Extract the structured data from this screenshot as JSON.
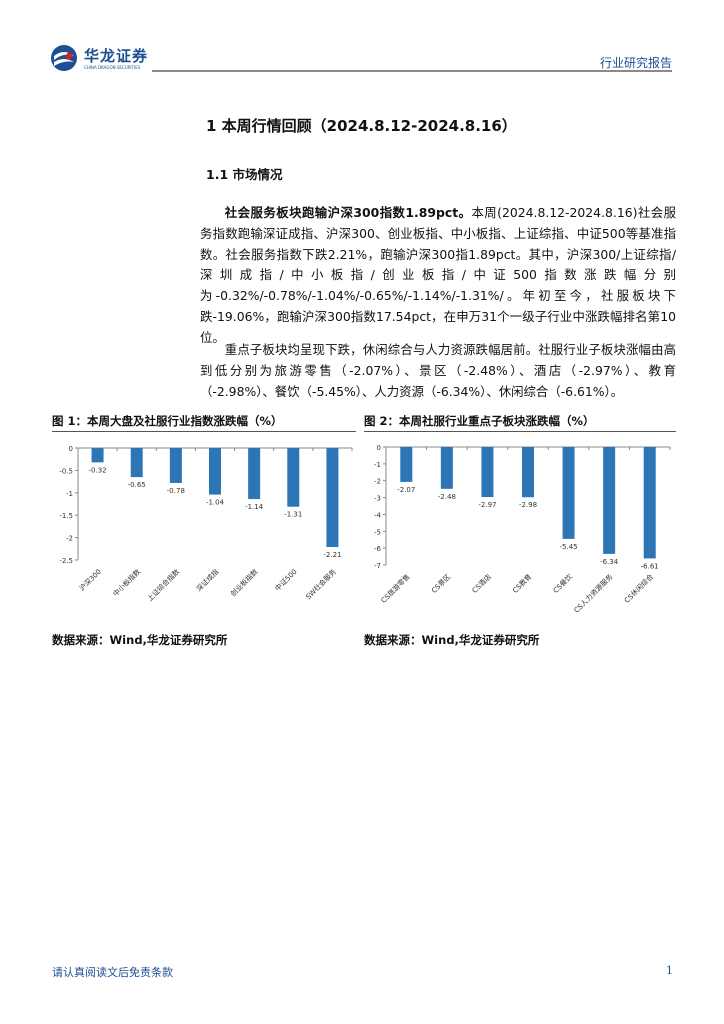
{
  "header": {
    "logo_cn": "华龙证券",
    "logo_en": "CHINA DRAGON SECURITIES",
    "report_type": "行业研究报告"
  },
  "section": {
    "title": "1 本周行情回顾（2024.8.12-2024.8.16）",
    "subtitle": "1.1 市场情况"
  },
  "paragraphs": {
    "p1_lead": "社会服务板块跑输沪深300指数1.89pct。",
    "p1_body": "本周(2024.8.12-2024.8.16)社会服务指数跑输深证成指、沪深300、创业板指、中小板指、上证综指、中证500等基准指数。社会服务指数下跌2.21%，跑输沪深300指1.89pct。其中，沪深300/上证综指/深圳成指/中小板指/创业板指/中证500指数涨跌幅分别为-0.32%/-0.78%/-1.04%/-0.65%/-1.14%/-1.31%/。年初至今，社服板块下跌-19.06%，跑输沪深300指数17.54pct，在申万31个一级子行业中涨跌幅排名第10位。",
    "p2": "重点子板块均呈现下跌，休闲综合与人力资源跌幅居前。社服行业子板块涨幅由高到低分别为旅游零售（-2.07%）、景区（-2.48%）、酒店（-2.97%）、教育（-2.98%）、餐饮（-5.45%）、人力资源（-6.34%）、休闲综合（-6.61%）。"
  },
  "figures": [
    {
      "title": "图 1：本周大盘及社服行业指数涨跌幅（%）",
      "source": "数据来源：Wind,华龙证券研究所"
    },
    {
      "title": "图 2：本周社服行业重点子板块涨跌幅（%）",
      "source": "数据来源：Wind,华龙证券研究所"
    }
  ],
  "chart_data": [
    {
      "type": "bar",
      "title": "图 1：本周大盘及社服行业指数涨跌幅（%）",
      "categories": [
        "沪深300",
        "中小板指数",
        "上证综合指数",
        "深证成指",
        "创业板指数",
        "中证500",
        "SW社会服务"
      ],
      "values": [
        -0.32,
        -0.65,
        -0.78,
        -1.04,
        -1.14,
        -1.31,
        -2.21
      ],
      "value_labels": [
        "-0.32",
        "-0.65",
        "-0.78",
        "-1.04",
        "-1.14",
        "-1.31",
        "-2.21"
      ],
      "yticks": [
        "0",
        "-0.5",
        "-1",
        "-1.5",
        "-2",
        "-2.5"
      ],
      "ylim": [
        -2.5,
        0
      ],
      "color": "#2e75b6",
      "grid": false
    },
    {
      "type": "bar",
      "title": "图 2：本周社服行业重点子板块涨跌幅（%）",
      "categories": [
        "CS旅游零售",
        "CS景区",
        "CS酒店",
        "CS教育",
        "CS餐饮",
        "CS人力资源服务",
        "CS休闲综合"
      ],
      "values": [
        -2.07,
        -2.48,
        -2.97,
        -2.98,
        -5.45,
        -6.34,
        -6.61
      ],
      "value_labels": [
        "-2.07",
        "-2.48",
        "-2.97",
        "-2.98",
        "-5.45",
        "-6.34",
        "-6.61"
      ],
      "yticks": [
        "0",
        "-1",
        "-2",
        "-3",
        "-4",
        "-5",
        "-6",
        "-7"
      ],
      "ylim": [
        -7,
        0
      ],
      "color": "#2e75b6",
      "grid": false
    }
  ],
  "footer": {
    "disclaimer": "请认真阅读文后免责条款",
    "page": "1"
  }
}
